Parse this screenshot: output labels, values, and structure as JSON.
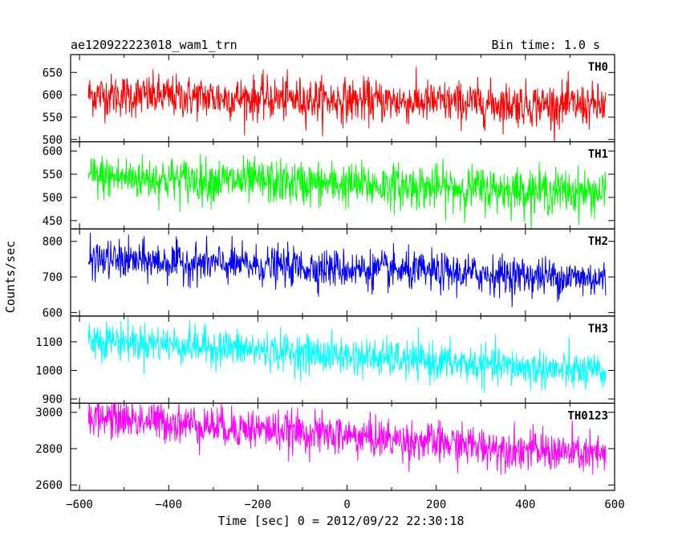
{
  "header": {
    "title": "ae120922223018_wam1_trn",
    "bin_time": "Bin time: 1.0 s"
  },
  "chart_data": {
    "type": "line",
    "title": "ae120922223018_wam1_trn",
    "bin_time": "Bin time: 1.0 s",
    "xlabel": "Time [sec] 0 = 2012/09/22 22:30:18",
    "ylabel": "Counts/sec",
    "xlim": [
      -620,
      600
    ],
    "xticks": [
      -600,
      -400,
      -200,
      0,
      200,
      400,
      600
    ],
    "xtick_labels": [
      "−600",
      "−400",
      "−200",
      "0",
      "200",
      "400",
      "600"
    ],
    "x_data_range": [
      -580,
      580
    ],
    "grid": false,
    "panels": [
      {
        "name": "TH0",
        "color": "#ff0000",
        "ylim": [
          495,
          690
        ],
        "yticks": [
          500,
          550,
          600,
          650
        ],
        "ytick_labels": [
          "500",
          "550",
          "600",
          "650"
        ],
        "mean_start": 600,
        "mean_end": 575,
        "noise_sigma": 24
      },
      {
        "name": "TH1",
        "color": "#00ff00",
        "ylim": [
          432,
          620
        ],
        "yticks": [
          450,
          500,
          550,
          600
        ],
        "ytick_labels": [
          "450",
          "500",
          "550",
          "600"
        ],
        "mean_start": 545,
        "mean_end": 510,
        "noise_sigma": 24
      },
      {
        "name": "TH2",
        "color": "#0000ff",
        "ylim": [
          590,
          835
        ],
        "yticks": [
          600,
          700,
          800
        ],
        "ytick_labels": [
          "600",
          "700",
          "800"
        ],
        "mean_start": 750,
        "mean_end": 695,
        "noise_sigma": 27
      },
      {
        "name": "TH3",
        "color": "#00ffff",
        "ylim": [
          885,
          1190
        ],
        "yticks": [
          900,
          1000,
          1100
        ],
        "ytick_labels": [
          "900",
          "1000",
          "1100"
        ],
        "mean_start": 1110,
        "mean_end": 990,
        "noise_sigma": 33
      },
      {
        "name": "TH0123",
        "color": "#ff00ff",
        "ylim": [
          2570,
          3050
        ],
        "yticks": [
          2600,
          2800,
          3000
        ],
        "ytick_labels": [
          "2600",
          "2800",
          "3000"
        ],
        "mean_start": 2980,
        "mean_end": 2760,
        "noise_sigma": 55
      }
    ]
  }
}
